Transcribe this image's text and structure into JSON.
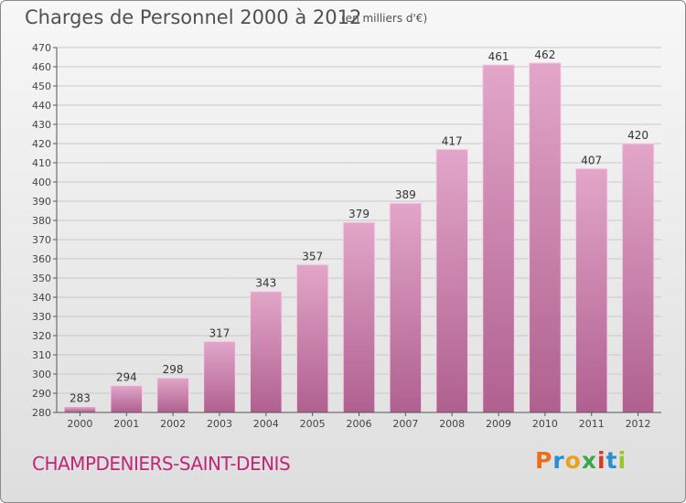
{
  "chart_data": {
    "type": "bar",
    "title": "Charges de Personnel 2000 à 2012",
    "subtitle": "(en milliers d'€)",
    "categories": [
      "2000",
      "2001",
      "2002",
      "2003",
      "2004",
      "2005",
      "2006",
      "2007",
      "2008",
      "2009",
      "2010",
      "2011",
      "2012"
    ],
    "values": [
      283,
      294,
      298,
      317,
      343,
      357,
      379,
      389,
      417,
      461,
      462,
      407,
      420
    ],
    "ylim": [
      280,
      470
    ],
    "yticks": [
      280,
      290,
      300,
      310,
      320,
      330,
      340,
      350,
      360,
      370,
      380,
      390,
      400,
      410,
      420,
      430,
      440,
      450,
      460,
      470
    ],
    "grid": true,
    "bar_color": "#c7679f"
  },
  "footer": {
    "place": "CHAMPDENIERS-SAINT-DENIS",
    "logo_letters": [
      "P",
      "r",
      "o",
      "x",
      "i",
      "t",
      "i"
    ],
    "logo_colors": [
      "#e8701c",
      "#2a8fd1",
      "#e8a21c",
      "#3aa84a",
      "#d83a2a",
      "#2a8fd1",
      "#9ac42a"
    ]
  }
}
